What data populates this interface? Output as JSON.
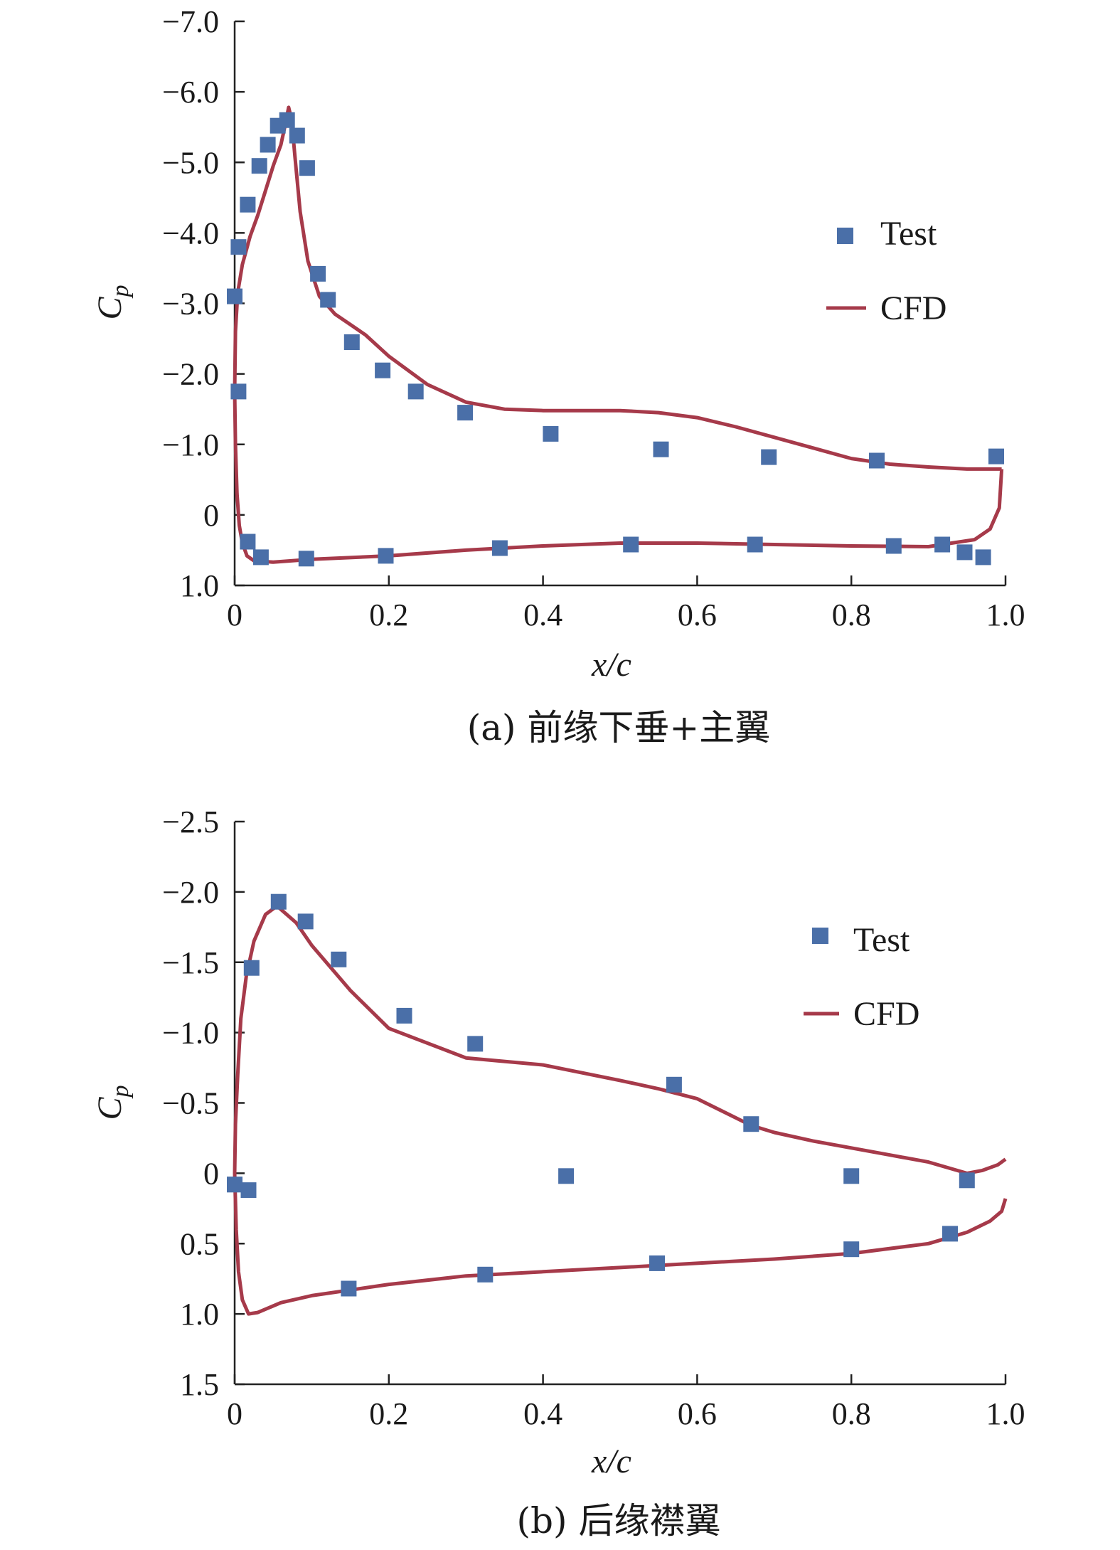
{
  "chart_data": [
    {
      "type": "scatter",
      "caption": "(a) 前缘下垂+主翼",
      "xlabel": "x/c",
      "ylabel_main": "C",
      "ylabel_sub": "p",
      "xlim": [
        0,
        1.0
      ],
      "ylim": [
        1.0,
        -7.0
      ],
      "y_inverted": true,
      "x_ticks": [
        0,
        0.2,
        0.4,
        0.6,
        0.8,
        1.0
      ],
      "x_tick_labels": [
        "0",
        "0.2",
        "0.4",
        "0.6",
        "0.8",
        "1.0"
      ],
      "y_ticks": [
        -7,
        -6,
        -5,
        -4,
        -3,
        -2,
        -1,
        0,
        1
      ],
      "y_tick_labels": [
        "−7.0",
        "−6.0",
        "−5.0",
        "−4.0",
        "−3.0",
        "−2.0",
        "−1.0",
        "0",
        "1.0"
      ],
      "legend": {
        "position": "right",
        "test_label": "Test",
        "cfd_label": "CFD"
      },
      "series": [
        {
          "name": "Test",
          "kind": "markers",
          "x": [
            0.0,
            0.005,
            0.017,
            0.032,
            0.043,
            0.056,
            0.068,
            0.081,
            0.094,
            0.108,
            0.121,
            0.152,
            0.192,
            0.235,
            0.299,
            0.41,
            0.553,
            0.693,
            0.833,
            0.988,
            0.005,
            0.017,
            0.034,
            0.093,
            0.196,
            0.344,
            0.514,
            0.675,
            0.855,
            0.918,
            0.947,
            0.971
          ],
          "y": [
            -3.1,
            -3.8,
            -4.4,
            -4.95,
            -5.25,
            -5.52,
            -5.6,
            -5.38,
            -4.92,
            -3.42,
            -3.05,
            -2.45,
            -2.05,
            -1.75,
            -1.45,
            -1.15,
            -0.93,
            -0.82,
            -0.77,
            -0.83,
            -1.75,
            0.38,
            0.6,
            0.62,
            0.58,
            0.47,
            0.42,
            0.42,
            0.44,
            0.42,
            0.53,
            0.6
          ]
        },
        {
          "name": "CFD",
          "kind": "line",
          "x": [
            0.995,
            0.98,
            0.95,
            0.9,
            0.85,
            0.8,
            0.75,
            0.7,
            0.65,
            0.6,
            0.55,
            0.5,
            0.45,
            0.4,
            0.35,
            0.3,
            0.25,
            0.2,
            0.17,
            0.15,
            0.13,
            0.11,
            0.095,
            0.085,
            0.078,
            0.074,
            0.07,
            0.066,
            0.06,
            0.05,
            0.04,
            0.03,
            0.02,
            0.01,
            0.004,
            0.001,
            0.0,
            0.001,
            0.003,
            0.006,
            0.01,
            0.016,
            0.025,
            0.05,
            0.1,
            0.2,
            0.3,
            0.4,
            0.5,
            0.6,
            0.7,
            0.8,
            0.9,
            0.93,
            0.96,
            0.98,
            0.992,
            0.995
          ],
          "y": [
            -0.65,
            -0.65,
            -0.65,
            -0.68,
            -0.72,
            -0.8,
            -0.95,
            -1.1,
            -1.25,
            -1.38,
            -1.45,
            -1.48,
            -1.48,
            -1.48,
            -1.5,
            -1.6,
            -1.85,
            -2.25,
            -2.55,
            -2.7,
            -2.85,
            -3.1,
            -3.6,
            -4.3,
            -5.1,
            -5.6,
            -5.78,
            -5.55,
            -5.25,
            -4.95,
            -4.6,
            -4.25,
            -3.95,
            -3.55,
            -3.15,
            -2.6,
            -1.75,
            -1.0,
            -0.3,
            0.15,
            0.4,
            0.58,
            0.65,
            0.67,
            0.63,
            0.58,
            0.5,
            0.44,
            0.4,
            0.4,
            0.42,
            0.44,
            0.45,
            0.4,
            0.35,
            0.2,
            -0.1,
            -0.65
          ]
        }
      ]
    },
    {
      "type": "scatter",
      "caption": "(b) 后缘襟翼",
      "xlabel": "x/c",
      "ylabel_main": "C",
      "ylabel_sub": "p",
      "xlim": [
        0,
        1.0
      ],
      "ylim": [
        1.5,
        -2.5
      ],
      "y_inverted": true,
      "x_ticks": [
        0,
        0.2,
        0.4,
        0.6,
        0.8,
        1.0
      ],
      "x_tick_labels": [
        "0",
        "0.2",
        "0.4",
        "0.6",
        "0.8",
        "1.0"
      ],
      "y_ticks": [
        -2.5,
        -2.0,
        -1.5,
        -1.0,
        -0.5,
        0,
        0.5,
        1.0,
        1.5
      ],
      "y_tick_labels": [
        "−2.5",
        "−2.0",
        "−1.5",
        "−1.0",
        "−0.5",
        "0",
        "0.5",
        "1.0",
        "1.5"
      ],
      "legend": {
        "position": "right",
        "test_label": "Test",
        "cfd_label": "CFD"
      },
      "series": [
        {
          "name": "Test",
          "kind": "markers",
          "x": [
            0.0,
            0.018,
            0.022,
            0.057,
            0.092,
            0.135,
            0.22,
            0.312,
            0.43,
            0.57,
            0.67,
            0.8,
            0.95,
            0.0,
            0.148,
            0.325,
            0.548,
            0.8,
            0.928
          ],
          "y": [
            0.08,
            0.12,
            -1.46,
            -1.93,
            -1.79,
            -1.52,
            -1.12,
            -0.92,
            0.02,
            -0.63,
            -0.35,
            0.02,
            0.05,
            0.08,
            0.82,
            0.72,
            0.64,
            0.54,
            0.43
          ]
        },
        {
          "name": "CFD",
          "kind": "line",
          "x": [
            1.0,
            0.99,
            0.97,
            0.95,
            0.9,
            0.85,
            0.8,
            0.75,
            0.7,
            0.67,
            0.6,
            0.55,
            0.5,
            0.4,
            0.3,
            0.2,
            0.15,
            0.1,
            0.08,
            0.055,
            0.04,
            0.025,
            0.015,
            0.008,
            0.004,
            0.001,
            0.0,
            0.002,
            0.005,
            0.01,
            0.018,
            0.03,
            0.06,
            0.1,
            0.2,
            0.3,
            0.4,
            0.5,
            0.6,
            0.7,
            0.8,
            0.9,
            0.95,
            0.98,
            0.995,
            1.0
          ],
          "y": [
            -0.1,
            -0.06,
            -0.02,
            0.0,
            -0.08,
            -0.13,
            -0.18,
            -0.23,
            -0.29,
            -0.34,
            -0.53,
            -0.6,
            -0.66,
            -0.77,
            -0.82,
            -1.03,
            -1.3,
            -1.62,
            -1.78,
            -1.9,
            -1.84,
            -1.65,
            -1.4,
            -1.1,
            -0.7,
            -0.35,
            0.0,
            0.4,
            0.7,
            0.9,
            1.0,
            0.99,
            0.92,
            0.87,
            0.79,
            0.73,
            0.7,
            0.67,
            0.64,
            0.61,
            0.57,
            0.5,
            0.42,
            0.34,
            0.27,
            0.18
          ]
        }
      ]
    }
  ]
}
